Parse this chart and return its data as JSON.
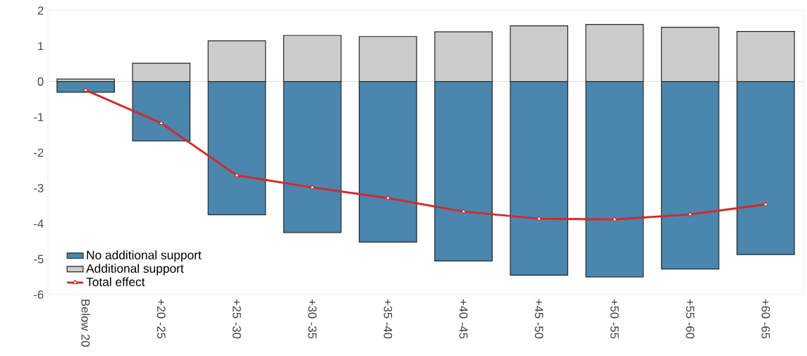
{
  "chart_data": {
    "type": "bar",
    "stacked": true,
    "categories": [
      "Below 20",
      "+20 -25",
      "+25 -30",
      "+30 -35",
      "+35 -40",
      "+40 -45",
      "+45 -50",
      "+50 -55",
      "+55 -60",
      "+60 -65"
    ],
    "series": [
      {
        "name": "No additional support",
        "color": "#4a86ae",
        "values": [
          -0.3,
          -1.67,
          -3.75,
          -4.25,
          -4.52,
          -5.05,
          -5.45,
          -5.5,
          -5.28,
          -4.87
        ]
      },
      {
        "name": "Additional support",
        "color": "#cccccc",
        "values": [
          0.07,
          0.52,
          1.15,
          1.3,
          1.27,
          1.4,
          1.57,
          1.61,
          1.53,
          1.41
        ]
      },
      {
        "name": "Total effect",
        "type": "line",
        "color": "#d42a2a",
        "values": [
          -0.24,
          -1.17,
          -2.64,
          -2.98,
          -3.28,
          -3.66,
          -3.86,
          -3.88,
          -3.74,
          -3.46
        ]
      }
    ],
    "ylim": [
      -6,
      2
    ],
    "yticks": [
      -6,
      -5,
      -4,
      -3,
      -2,
      -1,
      0,
      1,
      2
    ],
    "ref_lines": [
      {
        "axis": "y",
        "value": 0,
        "color": "#d9d9d9"
      }
    ],
    "legend": "bottom left",
    "marker": "triangle",
    "line_style": "solid",
    "grid": false
  }
}
